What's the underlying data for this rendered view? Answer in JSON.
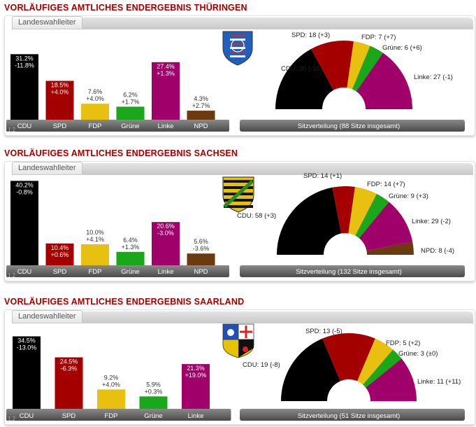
{
  "sections": [
    {
      "title": "VORLÄUFIGES AMTLICHES ENDERGEBNIS THÜRINGEN",
      "tab": "Landeswahlleiter",
      "footnote": "1.2",
      "crest": "thueringen-crest-icon",
      "chart_data": {
        "type": "bar",
        "categories": [
          "CDU",
          "SPD",
          "FDP",
          "Grüne",
          "Linke",
          "NPD"
        ],
        "values": [
          31.2,
          18.5,
          7.6,
          6.2,
          27.4,
          4.3
        ],
        "changes": [
          "-11.8%",
          "+4.0%",
          "+4.0%",
          "+1.7%",
          "+1.3%",
          "+2.7%"
        ],
        "value_labels": [
          "31.2%",
          "18.5%",
          "7.6%",
          "6.2%",
          "27.4%",
          "4.3%"
        ],
        "colors": [
          "#000000",
          "#a40000",
          "#e8c010",
          "#1aa81a",
          "#a0006a",
          "#6b3a10"
        ]
      },
      "seats": {
        "type": "pie",
        "caption": "Sitzverteilung (88 Sitze insgesamt)",
        "total": 88,
        "parties": [
          "CDU",
          "SPD",
          "FDP",
          "Grüne",
          "Linke"
        ],
        "values": [
          30,
          18,
          7,
          6,
          27
        ],
        "labels": [
          "CDU: 30 (-15)",
          "SPD: 18 (+3)",
          "FDP: 7 (+7)",
          "Grüne: 6 (+6)",
          "Linke: 27 (-1)"
        ],
        "colors": [
          "#000000",
          "#a40000",
          "#e8c010",
          "#1aa81a",
          "#a0006a"
        ]
      }
    },
    {
      "title": "VORLÄUFIGES AMTLICHES ENDERGEBNIS SACHSEN",
      "tab": "Landeswahlleiter",
      "footnote": "1.2",
      "crest": "sachsen-crest-icon",
      "chart_data": {
        "type": "bar",
        "categories": [
          "CDU",
          "SPD",
          "FDP",
          "Grüne",
          "Linke",
          "NPD"
        ],
        "values": [
          40.2,
          10.4,
          10.0,
          6.4,
          20.6,
          5.6
        ],
        "changes": [
          "-0.8%",
          "+0.6%",
          "+4.1%",
          "+1.3%",
          "-3.0%",
          "-3.6%"
        ],
        "value_labels": [
          "40.2%",
          "10.4%",
          "10.0%",
          "6.4%",
          "20.6%",
          "5.6%"
        ],
        "colors": [
          "#000000",
          "#a40000",
          "#e8c010",
          "#1aa81a",
          "#a0006a",
          "#6b3a10"
        ]
      },
      "seats": {
        "type": "pie",
        "caption": "Sitzverteilung (132 Sitze insgesamt)",
        "total": 132,
        "parties": [
          "CDU",
          "SPD",
          "FDP",
          "Grüne",
          "Linke",
          "NPD"
        ],
        "values": [
          58,
          14,
          14,
          9,
          29,
          8
        ],
        "labels": [
          "CDU: 58 (+3)",
          "SPD: 14 (+1)",
          "FDP: 14 (+7)",
          "Grüne: 9 (+3)",
          "Linke: 29 (-2)",
          "NPD: 8 (-4)"
        ],
        "colors": [
          "#000000",
          "#a40000",
          "#e8c010",
          "#1aa81a",
          "#a0006a",
          "#6b3a10"
        ]
      }
    },
    {
      "title": "VORLÄUFIGES AMTLICHES ENDERGEBNIS SAARLAND",
      "tab": "Landeswahlleiter",
      "footnote": "1.2",
      "crest": "saarland-crest-icon",
      "chart_data": {
        "type": "bar",
        "categories": [
          "CDU",
          "SPD",
          "FDP",
          "Grüne",
          "Linke"
        ],
        "values": [
          34.5,
          24.5,
          9.2,
          5.9,
          21.3
        ],
        "changes": [
          "-13.0%",
          "-6.3%",
          "+4.0%",
          "+0.3%",
          "+19.0%"
        ],
        "value_labels": [
          "34.5%",
          "24.5%",
          "9.2%",
          "5.9%",
          "21.3%"
        ],
        "colors": [
          "#000000",
          "#a40000",
          "#e8c010",
          "#1aa81a",
          "#a0006a"
        ]
      },
      "seats": {
        "type": "pie",
        "caption": "Sitzverteilung (51 Sitze insgesamt)",
        "total": 51,
        "parties": [
          "CDU",
          "SPD",
          "FDP",
          "Grüne",
          "Linke"
        ],
        "values": [
          19,
          13,
          5,
          3,
          11
        ],
        "labels": [
          "CDU: 19 (-8)",
          "SPD: 13 (-5)",
          "FDP: 5 (+2)",
          "Grüne: 3 (±0)",
          "Linke: 11 (+11)"
        ],
        "colors": [
          "#000000",
          "#a40000",
          "#e8c010",
          "#1aa81a",
          "#a0006a"
        ]
      }
    }
  ]
}
